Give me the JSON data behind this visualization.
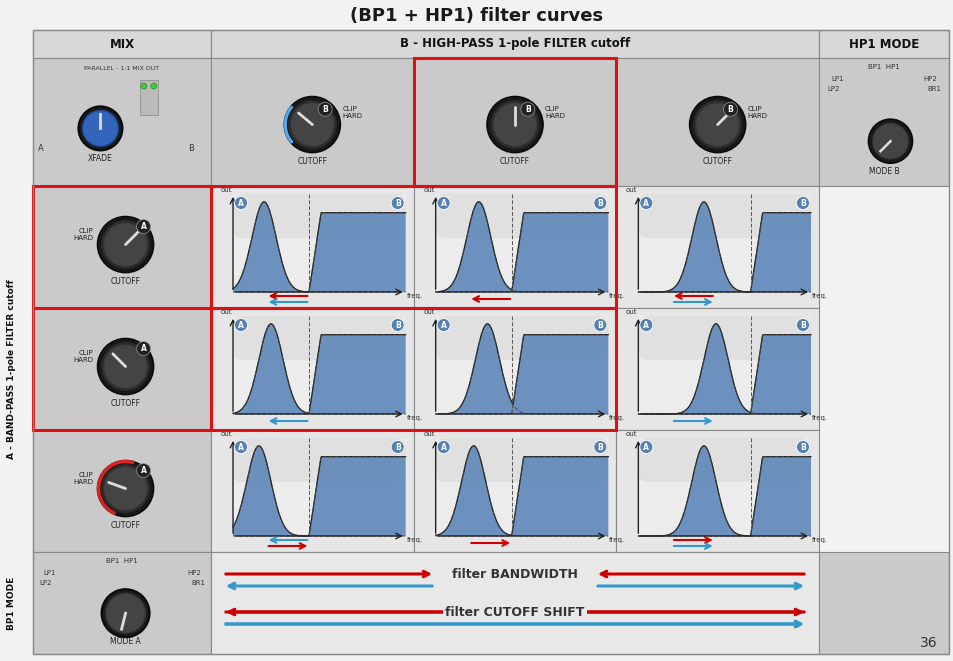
{
  "title": "(BP1 + HP1) filter curves",
  "page_number": "36",
  "blue_fill": "#5b85b8",
  "blue_fill_alpha": 0.9,
  "chart_bg": "#f2f2f2",
  "bandwidth_label": "filter BANDWIDTH",
  "cutoff_label": "filter CUTOFF SHIFT",
  "grid_color": "#888888",
  "red_color": "#cc0000",
  "blue_color": "#3399cc",
  "page_bg": "#f0f0f0",
  "cell_bg_dark": "#cccccc",
  "cell_bg_light": "#e4e4e4"
}
